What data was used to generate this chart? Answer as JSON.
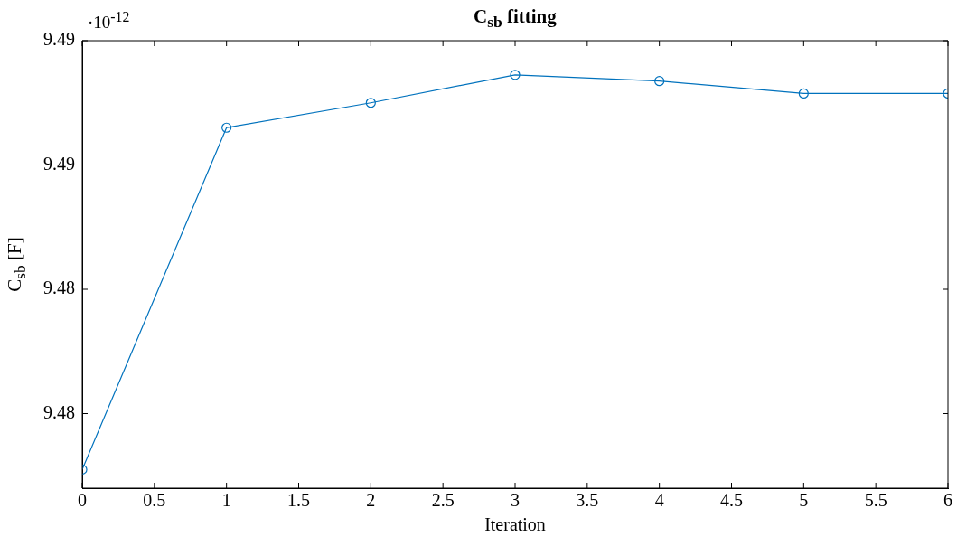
{
  "chart_data": {
    "type": "line",
    "title": "C$_{sb}$ fitting",
    "xlabel": "Iteration",
    "ylabel": "C$_{sb}$ [F]",
    "annotations": [
      "·10$^{-12}$"
    ],
    "x": [
      0,
      1,
      2,
      3,
      4,
      5,
      6
    ],
    "series": [
      {
        "color": "#0072bd",
        "values": [
          9.4762,
          9.4872,
          9.488,
          9.4889,
          9.4887,
          9.4883,
          9.4883
        ]
      }
    ],
    "xlim": [
      0,
      6
    ],
    "xticks": [
      0,
      0.5,
      1,
      1.5,
      2,
      2.5,
      3,
      3.5,
      4,
      4.5,
      5,
      5.5,
      6
    ],
    "ylim": [
      9.4756,
      9.49
    ],
    "yticks": [
      {
        "value": 9.478,
        "label": "9.48"
      },
      {
        "value": 9.482,
        "label": "9.48"
      },
      {
        "value": 9.486,
        "label": "9.49"
      },
      {
        "value": 9.49,
        "label": "9.49"
      }
    ],
    "grid": false,
    "legend": false,
    "marker": "circle",
    "line_style": "solid"
  }
}
